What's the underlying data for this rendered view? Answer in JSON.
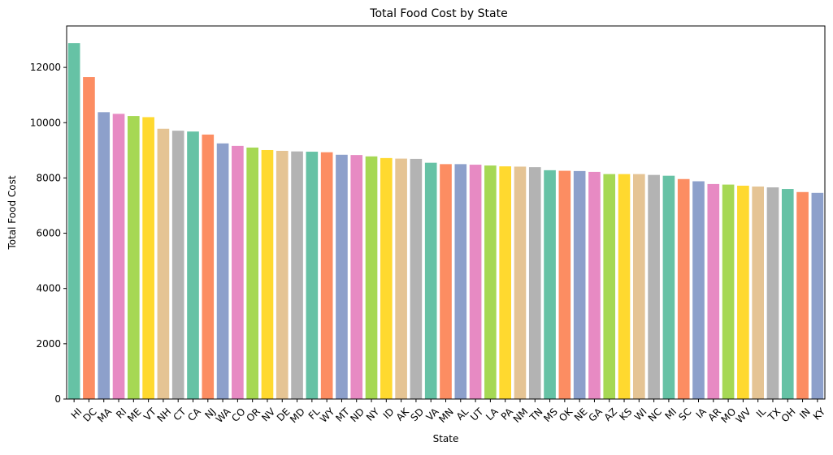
{
  "chart_data": {
    "type": "bar",
    "title": "Total Food Cost by State",
    "xlabel": "State",
    "ylabel": "Total Food Cost",
    "ylim": [
      0,
      13500
    ],
    "yticks": [
      0,
      2000,
      4000,
      6000,
      8000,
      10000,
      12000
    ],
    "grid": false,
    "legend": "none",
    "categories": [
      "HI",
      "DC",
      "MA",
      "RI",
      "ME",
      "VT",
      "NH",
      "CT",
      "CA",
      "NJ",
      "WA",
      "CO",
      "OR",
      "NV",
      "DE",
      "MD",
      "FL",
      "WY",
      "MT",
      "ND",
      "NY",
      "ID",
      "AK",
      "SD",
      "VA",
      "MN",
      "AL",
      "UT",
      "LA",
      "PA",
      "NM",
      "TN",
      "MS",
      "OK",
      "NE",
      "GA",
      "AZ",
      "KS",
      "WI",
      "NC",
      "MI",
      "SC",
      "IA",
      "AR",
      "MO",
      "WV",
      "IL",
      "TX",
      "OH",
      "IN",
      "KY"
    ],
    "values": [
      12880,
      11650,
      10380,
      10320,
      10240,
      10200,
      9780,
      9710,
      9680,
      9570,
      9250,
      9160,
      9100,
      9010,
      8980,
      8960,
      8950,
      8930,
      8840,
      8830,
      8780,
      8720,
      8700,
      8690,
      8550,
      8500,
      8500,
      8480,
      8450,
      8420,
      8410,
      8390,
      8280,
      8260,
      8250,
      8220,
      8140,
      8140,
      8140,
      8110,
      8080,
      7960,
      7880,
      7780,
      7760,
      7720,
      7690,
      7660,
      7600,
      7490,
      7460
    ],
    "palette": [
      "#66c2a5",
      "#fc8d62",
      "#8da0cb",
      "#e78ac3",
      "#a6d854",
      "#ffd92f",
      "#e5c494",
      "#b3b3b3"
    ]
  }
}
